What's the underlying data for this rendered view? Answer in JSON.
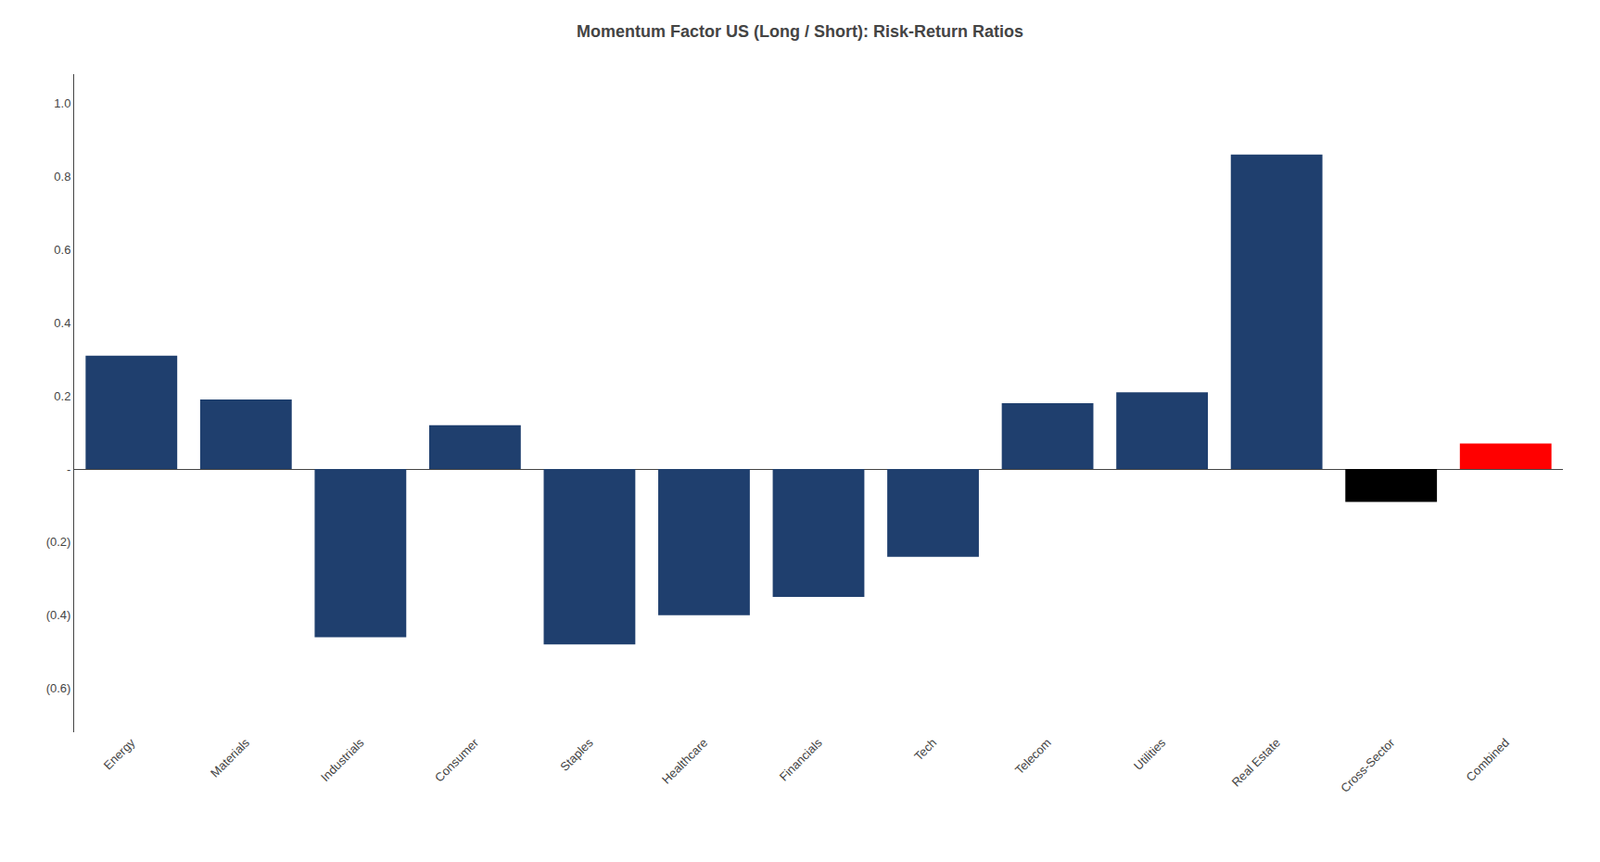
{
  "chart_data": {
    "type": "bar",
    "title": "Momentum Factor US (Long / Short): Risk-Return Ratios",
    "categories": [
      "Energy",
      "Materials",
      "Industrials",
      "Consumer",
      "Staples",
      "Healthcare",
      "Financials",
      "Tech",
      "Telecom",
      "Utilities",
      "Real Estate",
      "Cross-Sector",
      "Combined"
    ],
    "values": [
      0.31,
      0.19,
      -0.46,
      0.12,
      -0.48,
      -0.4,
      -0.35,
      -0.24,
      0.18,
      0.21,
      0.86,
      -0.09,
      0.07
    ],
    "colors": [
      "#1f3f6e",
      "#1f3f6e",
      "#1f3f6e",
      "#1f3f6e",
      "#1f3f6e",
      "#1f3f6e",
      "#1f3f6e",
      "#1f3f6e",
      "#1f3f6e",
      "#1f3f6e",
      "#1f3f6e",
      "#000000",
      "#ff0000"
    ],
    "ylim": [
      -0.72,
      1.08
    ],
    "yticks": [
      {
        "value": 1.0,
        "label": "1.0"
      },
      0.8,
      0.6,
      0.4,
      0.2,
      {
        "value": 0.0,
        "label": "-"
      },
      {
        "value": -0.2,
        "label": "(0.2)"
      },
      {
        "value": -0.4,
        "label": "(0.4)"
      },
      {
        "value": -0.6,
        "label": "(0.6)"
      }
    ],
    "grid": false
  }
}
